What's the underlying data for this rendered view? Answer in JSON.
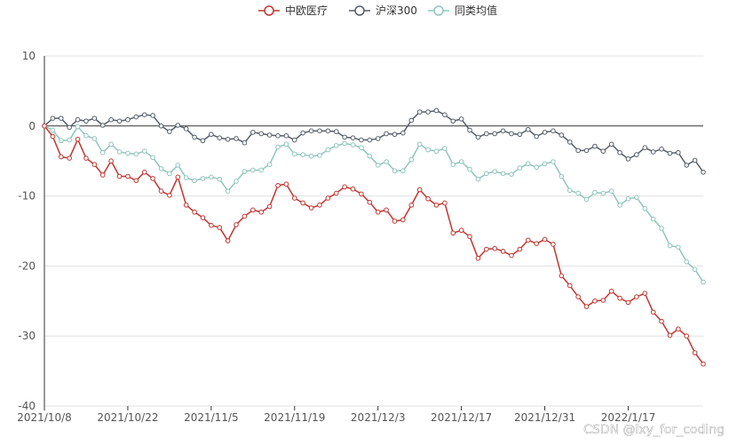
{
  "chart_data": {
    "type": "line",
    "title": "",
    "xlabel": "",
    "ylabel": "",
    "ylim": [
      -40,
      10
    ],
    "yticks": [
      10,
      0,
      -10,
      -20,
      -30,
      -40
    ],
    "grid": "horizontal",
    "legend_position": "top-center",
    "x_tick_labels": [
      "2021/10/8",
      "2021/10/22",
      "2021/11/5",
      "2021/11/19",
      "2021/12/3",
      "2021/12/17",
      "2021/12/31",
      "2022/1/17"
    ],
    "x_tick_indices": [
      0,
      10,
      20,
      30,
      40,
      50,
      60,
      70
    ],
    "series": [
      {
        "name": "中欧医疗",
        "color": "#c23531",
        "values": [
          0,
          -1.5,
          -4.4,
          -4.6,
          -1.9,
          -4.6,
          -5.5,
          -7.0,
          -5.0,
          -7.2,
          -7.2,
          -7.8,
          -6.6,
          -7.5,
          -9.3,
          -9.9,
          -7.3,
          -11.3,
          -12.3,
          -13.1,
          -14.2,
          -14.5,
          -16.4,
          -14.1,
          -12.9,
          -12.0,
          -12.3,
          -11.5,
          -8.5,
          -8.3,
          -10.3,
          -11.0,
          -11.7,
          -11.3,
          -10.3,
          -9.6,
          -8.7,
          -9.0,
          -9.7,
          -10.9,
          -12.3,
          -12.0,
          -13.6,
          -13.4,
          -11.3,
          -9.1,
          -10.4,
          -11.3,
          -11.0,
          -15.3,
          -14.9,
          -15.8,
          -18.9,
          -17.6,
          -17.5,
          -17.9,
          -18.5,
          -17.6,
          -16.3,
          -16.8,
          -16.2,
          -16.9,
          -21.4,
          -22.8,
          -24.4,
          -25.8,
          -25.0,
          -24.9,
          -23.6,
          -24.6,
          -25.2,
          -24.4,
          -23.9,
          -26.6,
          -27.9,
          -29.9,
          -29.0,
          -30.0,
          -32.4,
          -34.0
        ]
      },
      {
        "name": "沪深300",
        "color": "#555e6b",
        "values": [
          0,
          1.1,
          1.1,
          -0.2,
          0.9,
          0.7,
          1.1,
          0.1,
          0.9,
          0.7,
          0.9,
          1.3,
          1.6,
          1.5,
          0.0,
          -0.8,
          0.1,
          -0.4,
          -1.6,
          -2.1,
          -1.2,
          -1.7,
          -1.9,
          -1.8,
          -2.4,
          -0.9,
          -1.1,
          -1.3,
          -1.4,
          -1.4,
          -2.0,
          -1.0,
          -0.7,
          -0.7,
          -0.7,
          -0.8,
          -1.6,
          -1.7,
          -2.0,
          -2.0,
          -1.8,
          -1.1,
          -1.2,
          -1.0,
          0.8,
          2.0,
          2.0,
          2.2,
          1.6,
          0.7,
          1.0,
          -0.6,
          -1.6,
          -1.1,
          -1.1,
          -0.7,
          -1.1,
          -1.2,
          -0.5,
          -1.5,
          -0.9,
          -0.7,
          -1.3,
          -2.3,
          -3.5,
          -3.5,
          -2.9,
          -3.6,
          -2.6,
          -3.8,
          -4.7,
          -4.1,
          -3.1,
          -3.7,
          -3.3,
          -3.9,
          -3.8,
          -5.6,
          -4.9,
          -6.6
        ]
      },
      {
        "name": "同类均值",
        "color": "#8fc5bd",
        "values": [
          0,
          -0.6,
          -2.1,
          -2.0,
          -0.1,
          -1.4,
          -1.8,
          -3.8,
          -2.6,
          -3.7,
          -3.9,
          -4.0,
          -3.6,
          -4.5,
          -6.1,
          -6.8,
          -5.6,
          -7.4,
          -7.8,
          -7.5,
          -7.3,
          -7.6,
          -9.3,
          -7.9,
          -6.5,
          -6.3,
          -6.3,
          -5.5,
          -3.0,
          -2.6,
          -4.0,
          -4.1,
          -4.3,
          -4.2,
          -3.4,
          -2.8,
          -2.5,
          -2.7,
          -3.1,
          -4.3,
          -5.6,
          -5.1,
          -6.4,
          -6.4,
          -4.8,
          -2.6,
          -3.4,
          -3.6,
          -3.2,
          -5.5,
          -5.1,
          -6.2,
          -7.6,
          -6.8,
          -6.5,
          -6.8,
          -6.9,
          -6.0,
          -5.4,
          -5.9,
          -5.4,
          -5.1,
          -7.2,
          -9.2,
          -9.6,
          -10.5,
          -9.5,
          -9.6,
          -9.3,
          -11.3,
          -10.4,
          -10.2,
          -11.8,
          -13.3,
          -14.6,
          -17.1,
          -17.3,
          -19.4,
          -20.5,
          -22.3
        ]
      }
    ]
  },
  "watermark": "CSDN @lxy_for_coding"
}
